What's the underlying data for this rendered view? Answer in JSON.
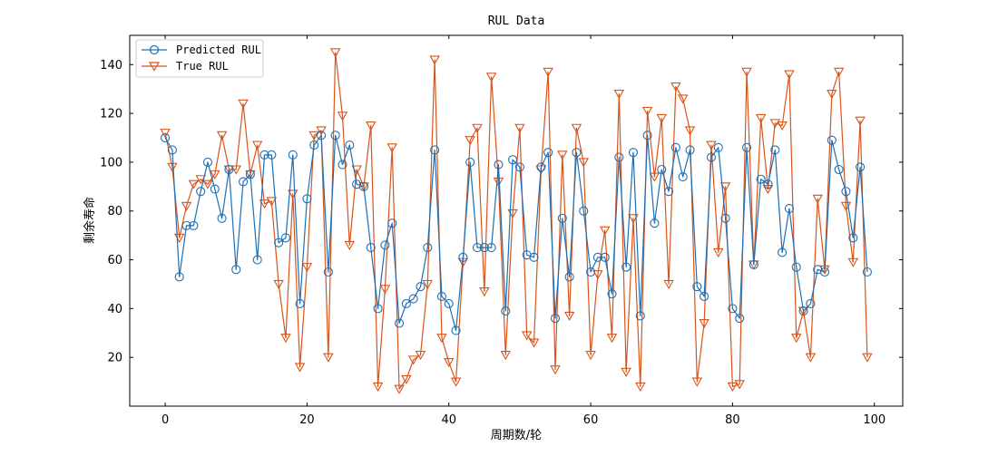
{
  "chart_data": {
    "type": "line",
    "title": "RUL Data",
    "xlabel": "周期数/轮",
    "ylabel": "剩余寿命",
    "xlim": [
      -5,
      104
    ],
    "ylim": [
      0,
      152
    ],
    "xticks": [
      0,
      20,
      40,
      60,
      80,
      100
    ],
    "yticks": [
      20,
      40,
      60,
      80,
      100,
      120,
      140
    ],
    "grid": false,
    "legend_position": "top-left",
    "x": [
      0,
      1,
      2,
      3,
      4,
      5,
      6,
      7,
      8,
      9,
      10,
      11,
      12,
      13,
      14,
      15,
      16,
      17,
      18,
      19,
      20,
      21,
      22,
      23,
      24,
      25,
      26,
      27,
      28,
      29,
      30,
      31,
      32,
      33,
      34,
      35,
      36,
      37,
      38,
      39,
      40,
      41,
      42,
      43,
      44,
      45,
      46,
      47,
      48,
      49,
      50,
      51,
      52,
      53,
      54,
      55,
      56,
      57,
      58,
      59,
      60,
      61,
      62,
      63,
      64,
      65,
      66,
      67,
      68,
      69,
      70,
      71,
      72,
      73,
      74,
      75,
      76,
      77,
      78,
      79,
      80,
      81,
      82,
      83,
      84,
      85,
      86,
      87,
      88,
      89,
      90,
      91,
      92,
      93,
      94,
      95,
      96,
      97,
      98,
      99
    ],
    "series": [
      {
        "name": "Predicted RUL",
        "color": "#1f6fb4",
        "marker": "circle",
        "values": [
          110,
          105,
          53,
          74,
          74,
          88,
          100,
          89,
          77,
          97,
          56,
          92,
          95,
          60,
          103,
          103,
          67,
          69,
          103,
          42,
          85,
          107,
          111,
          55,
          111,
          99,
          107,
          91,
          90,
          65,
          40,
          66,
          75,
          34,
          42,
          44,
          49,
          65,
          105,
          45,
          42,
          31,
          61,
          100,
          65,
          65,
          65,
          99,
          39,
          101,
          98,
          62,
          61,
          98,
          104,
          36,
          77,
          53,
          104,
          80,
          55,
          61,
          61,
          46,
          102,
          57,
          104,
          37,
          111,
          75,
          97,
          88,
          106,
          94,
          105,
          49,
          45,
          102,
          106,
          77,
          40,
          36,
          106,
          58,
          93,
          91,
          105,
          63,
          81,
          57,
          39,
          42,
          56,
          55,
          109,
          97,
          88,
          69,
          98,
          55
        ]
      },
      {
        "name": "True RUL",
        "color": "#d9541a",
        "marker": "triangle-down",
        "values": [
          112,
          98,
          69,
          82,
          91,
          93,
          91,
          95,
          111,
          97,
          97,
          124,
          95,
          107,
          83,
          84,
          50,
          28,
          87,
          16,
          57,
          111,
          113,
          20,
          145,
          119,
          66,
          97,
          90,
          115,
          8,
          48,
          106,
          7,
          11,
          19,
          21,
          50,
          142,
          28,
          18,
          10,
          59,
          109,
          114,
          47,
          135,
          92,
          21,
          79,
          114,
          29,
          26,
          97,
          137,
          15,
          103,
          37,
          114,
          100,
          21,
          54,
          72,
          28,
          128,
          14,
          77,
          8,
          121,
          94,
          118,
          50,
          131,
          126,
          113,
          10,
          34,
          107,
          63,
          90,
          8,
          9,
          137,
          58,
          118,
          89,
          116,
          115,
          136,
          28,
          39,
          20,
          85,
          56,
          128,
          137,
          82,
          59,
          117,
          20
        ]
      }
    ]
  }
}
